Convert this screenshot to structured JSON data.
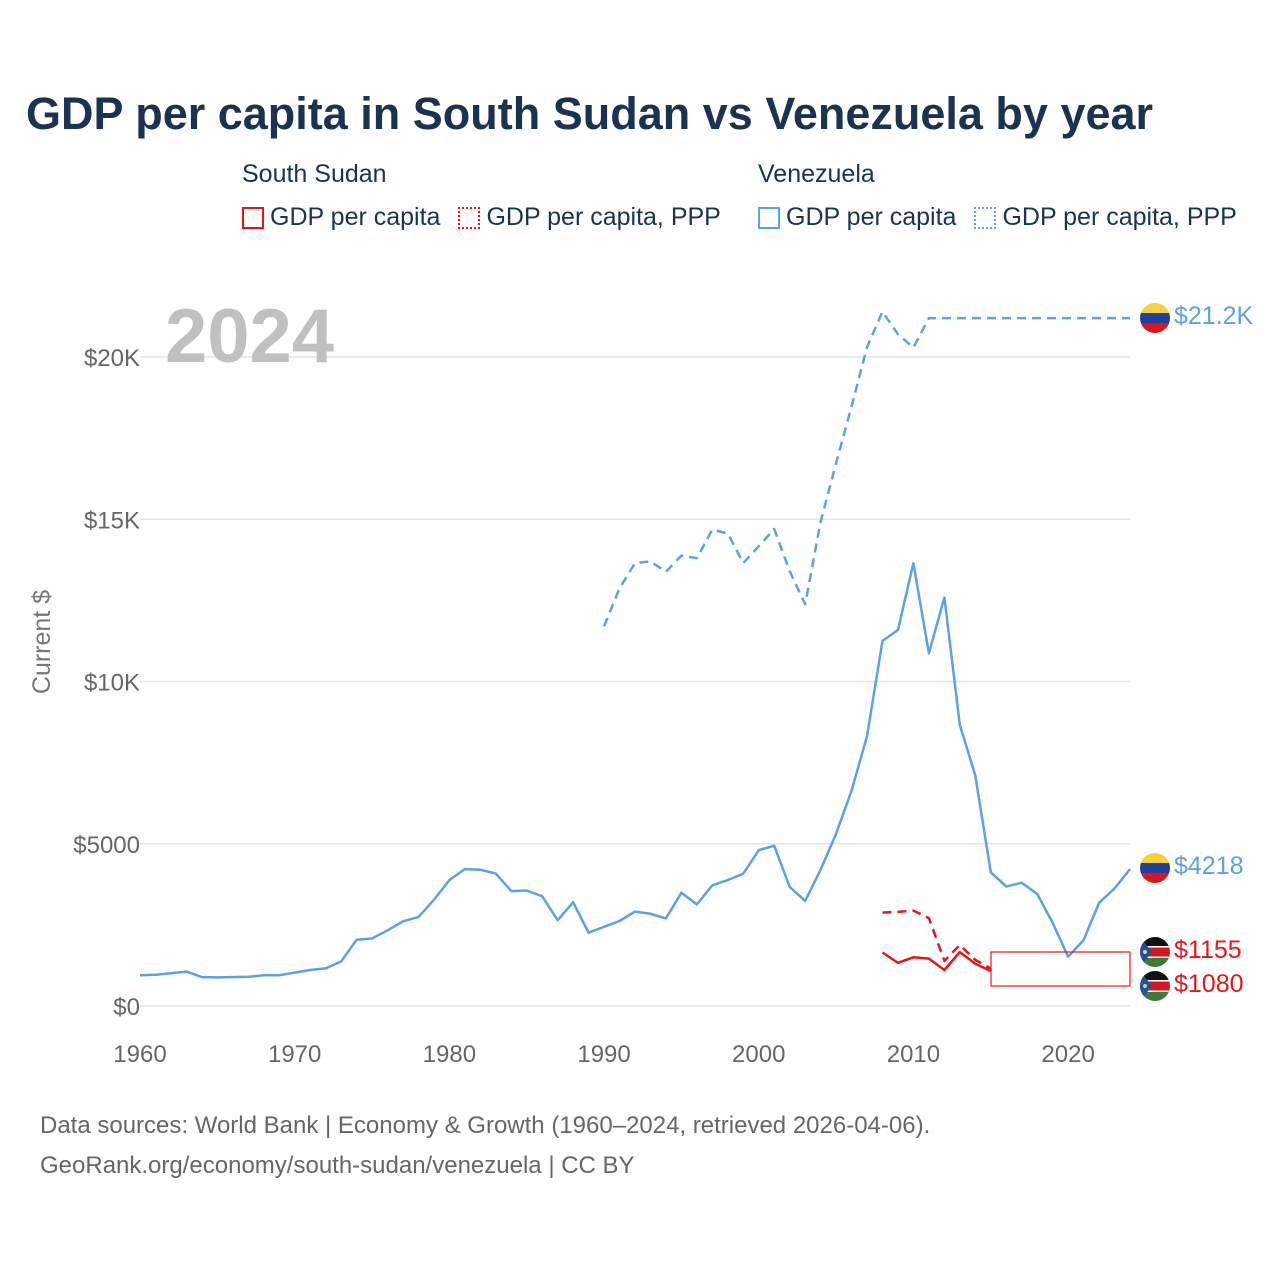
{
  "title": "GDP per capita in South Sudan vs Venezuela by year",
  "legend": {
    "south_sudan": {
      "name": "South Sudan",
      "items": [
        "GDP per capita",
        "GDP per capita, PPP"
      ],
      "color": "#e8141b"
    },
    "venezuela": {
      "name": "Venezuela",
      "items": [
        "GDP per capita",
        "GDP per capita, PPP"
      ],
      "color": "#5ba3e0"
    }
  },
  "year_label": "2024",
  "footer": {
    "line1": "Data sources: World Bank | Economy & Growth (1960–2024, retrieved 2026-04-06).",
    "line2": "GeoRank.org/economy/south-sudan/venezuela | CC BY"
  },
  "chart_data": {
    "type": "line",
    "title": "GDP per capita in South Sudan vs Venezuela by year",
    "xlabel": "",
    "ylabel": "Current $",
    "xlim": [
      1960,
      2024
    ],
    "ylim": [
      0,
      22000
    ],
    "x_ticks": [
      1960,
      1970,
      1980,
      1990,
      2000,
      2010,
      2020
    ],
    "y_ticks": [
      0,
      5000,
      10000,
      15000,
      20000
    ],
    "y_tick_labels": [
      "$0",
      "$5000",
      "$10K",
      "$15K",
      "$20K"
    ],
    "grid": true,
    "series": [
      {
        "name": "Venezuela GDP per capita",
        "color": "#5ba3e0",
        "dash": "solid",
        "end_label": "$4218",
        "x": [
          1960,
          1961,
          1962,
          1963,
          1964,
          1965,
          1966,
          1967,
          1968,
          1969,
          1970,
          1971,
          1972,
          1973,
          1974,
          1975,
          1976,
          1977,
          1978,
          1979,
          1980,
          1981,
          1982,
          1983,
          1984,
          1985,
          1986,
          1987,
          1988,
          1989,
          1990,
          1991,
          1992,
          1993,
          1994,
          1995,
          1996,
          1997,
          1998,
          1999,
          2000,
          2001,
          2002,
          2003,
          2004,
          2005,
          2006,
          2007,
          2008,
          2009,
          2010,
          2011,
          2012,
          2013,
          2014,
          2015,
          2016,
          2017,
          2018,
          2019,
          2020,
          2021,
          2022,
          2023,
          2024
        ],
        "y": [
          950,
          960,
          1010,
          1060,
          890,
          880,
          890,
          900,
          950,
          950,
          1030,
          1110,
          1160,
          1370,
          2040,
          2080,
          2330,
          2610,
          2740,
          3270,
          3880,
          4220,
          4200,
          4080,
          3540,
          3560,
          3380,
          2640,
          3200,
          2260,
          2440,
          2620,
          2910,
          2840,
          2700,
          3490,
          3130,
          3720,
          3880,
          4080,
          4800,
          4940,
          3670,
          3240,
          4200,
          5310,
          6640,
          8310,
          11250,
          11590,
          13650,
          10870,
          12590,
          8670,
          7100,
          4120,
          3680,
          3800,
          3450,
          2560,
          1520,
          2030,
          3180,
          3620,
          4218
        ]
      },
      {
        "name": "Venezuela GDP per capita, PPP",
        "color": "#5ba3e0",
        "dash": "dashed",
        "end_label": "$21.2K",
        "x": [
          1990,
          1991,
          1992,
          1993,
          1994,
          1995,
          1996,
          1997,
          1998,
          1999,
          2000,
          2001,
          2002,
          2003,
          2004,
          2005,
          2006,
          2007,
          2008,
          2009,
          2010,
          2011,
          2024
        ],
        "y": [
          11700,
          12870,
          13650,
          13700,
          13380,
          13880,
          13800,
          14680,
          14560,
          13650,
          14170,
          14700,
          13400,
          12380,
          14920,
          16730,
          18480,
          20300,
          21400,
          20700,
          20290,
          21200,
          21200
        ]
      },
      {
        "name": "South Sudan GDP per capita",
        "color": "#e8141b",
        "dash": "solid",
        "end_label": "$1080",
        "x": [
          2008,
          2009,
          2010,
          2011,
          2012,
          2013,
          2014,
          2015
        ],
        "y": [
          1650,
          1330,
          1500,
          1460,
          1110,
          1660,
          1300,
          1080
        ]
      },
      {
        "name": "South Sudan GDP per capita, PPP",
        "color": "#e8141b",
        "dash": "dashed",
        "end_label": "$1155",
        "x": [
          2008,
          2009,
          2010,
          2011,
          2012,
          2013,
          2014,
          2015
        ],
        "y": [
          2880,
          2900,
          2940,
          2710,
          1390,
          1880,
          1420,
          1155
        ]
      }
    ]
  }
}
